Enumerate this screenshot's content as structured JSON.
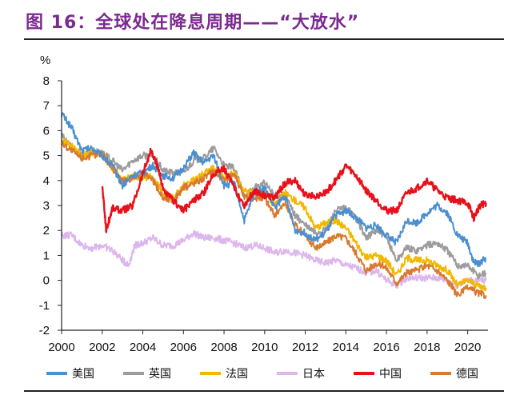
{
  "figure": {
    "title": "图 16：全球处在降息周期——“大放水”"
  },
  "colors": {
    "title": "#7b2a8f",
    "axis": "#222222"
  },
  "chart_data": {
    "type": "line",
    "ylabel": "%",
    "xlabel": "",
    "ylim": [
      -2,
      8
    ],
    "yticks": [
      -2,
      -1,
      0,
      1,
      2,
      3,
      4,
      5,
      6,
      7,
      8
    ],
    "xlim": [
      2000,
      2021
    ],
    "xticks": [
      "2000",
      "2002",
      "2004",
      "2006",
      "2008",
      "2010",
      "2012",
      "2014",
      "2016",
      "2018",
      "2020"
    ],
    "grid": false,
    "legend_position": "bottom",
    "series": [
      {
        "name": "美国",
        "color": "#4a8fd0",
        "x": [
          2000.0,
          2000.5,
          2001.0,
          2001.5,
          2002.0,
          2002.5,
          2003.0,
          2003.5,
          2004.0,
          2004.5,
          2005.0,
          2005.5,
          2006.0,
          2006.5,
          2007.0,
          2007.5,
          2008.0,
          2008.5,
          2009.0,
          2009.5,
          2010.0,
          2010.5,
          2011.0,
          2011.5,
          2012.0,
          2012.5,
          2013.0,
          2013.5,
          2014.0,
          2014.5,
          2015.0,
          2015.5,
          2016.0,
          2016.5,
          2017.0,
          2017.5,
          2018.0,
          2018.5,
          2019.0,
          2019.5,
          2020.0,
          2020.3,
          2020.6,
          2020.9
        ],
        "values": [
          6.7,
          6.1,
          5.2,
          5.3,
          5.0,
          4.6,
          3.8,
          4.2,
          4.3,
          4.6,
          4.2,
          4.1,
          4.5,
          5.1,
          4.7,
          5.0,
          3.8,
          3.9,
          2.4,
          3.5,
          3.7,
          2.9,
          3.4,
          2.0,
          1.9,
          1.6,
          1.9,
          2.6,
          2.8,
          2.5,
          2.1,
          2.2,
          1.8,
          1.5,
          2.4,
          2.3,
          2.7,
          3.0,
          2.7,
          1.8,
          1.5,
          0.7,
          0.7,
          0.9
        ]
      },
      {
        "name": "英国",
        "color": "#9c9c9c",
        "x": [
          2000.0,
          2000.5,
          2001.0,
          2001.5,
          2002.0,
          2002.5,
          2003.0,
          2003.5,
          2004.0,
          2004.5,
          2005.0,
          2005.5,
          2006.0,
          2006.5,
          2007.0,
          2007.5,
          2008.0,
          2008.5,
          2009.0,
          2009.5,
          2010.0,
          2010.5,
          2011.0,
          2011.5,
          2012.0,
          2012.5,
          2013.0,
          2013.5,
          2014.0,
          2014.5,
          2015.0,
          2015.5,
          2016.0,
          2016.5,
          2017.0,
          2017.5,
          2018.0,
          2018.5,
          2019.0,
          2019.5,
          2020.0,
          2020.5,
          2020.9
        ],
        "values": [
          5.8,
          5.3,
          5.0,
          5.2,
          5.1,
          4.8,
          4.4,
          4.8,
          5.0,
          5.0,
          4.4,
          4.3,
          4.3,
          4.8,
          4.9,
          5.3,
          4.6,
          4.5,
          3.4,
          3.7,
          3.9,
          3.4,
          3.4,
          2.6,
          2.2,
          1.9,
          2.0,
          2.8,
          2.9,
          2.5,
          1.7,
          2.0,
          1.7,
          0.8,
          1.3,
          1.2,
          1.4,
          1.5,
          1.2,
          0.6,
          0.6,
          0.2,
          0.3
        ]
      },
      {
        "name": "法国",
        "color": "#f2b800",
        "x": [
          2000.0,
          2000.5,
          2001.0,
          2001.5,
          2002.0,
          2002.5,
          2003.0,
          2003.5,
          2004.0,
          2004.5,
          2005.0,
          2005.5,
          2006.0,
          2006.5,
          2007.0,
          2007.5,
          2008.0,
          2008.5,
          2009.0,
          2009.5,
          2010.0,
          2010.5,
          2011.0,
          2011.5,
          2012.0,
          2012.5,
          2013.0,
          2013.5,
          2014.0,
          2014.5,
          2015.0,
          2015.5,
          2016.0,
          2016.5,
          2017.0,
          2017.5,
          2018.0,
          2018.5,
          2019.0,
          2019.5,
          2020.0,
          2020.5,
          2020.9
        ],
        "values": [
          5.6,
          5.4,
          5.0,
          5.1,
          5.0,
          4.5,
          4.0,
          4.2,
          4.1,
          4.2,
          3.4,
          3.3,
          3.8,
          4.0,
          4.3,
          4.5,
          4.1,
          4.3,
          3.6,
          3.5,
          3.5,
          3.0,
          3.5,
          3.2,
          2.9,
          2.1,
          2.3,
          2.4,
          2.1,
          1.5,
          0.9,
          1.0,
          0.8,
          0.2,
          0.9,
          0.8,
          0.8,
          0.6,
          0.4,
          -0.2,
          0.0,
          -0.2,
          -0.3
        ]
      },
      {
        "name": "日本",
        "color": "#dcb7ec",
        "x": [
          2000.0,
          2000.5,
          2001.0,
          2001.5,
          2002.0,
          2002.5,
          2003.0,
          2003.3,
          2003.6,
          2004.0,
          2004.5,
          2005.0,
          2005.5,
          2006.0,
          2006.5,
          2007.0,
          2007.5,
          2008.0,
          2008.5,
          2009.0,
          2009.5,
          2010.0,
          2010.5,
          2011.0,
          2011.5,
          2012.0,
          2012.5,
          2013.0,
          2013.5,
          2014.0,
          2014.5,
          2015.0,
          2015.5,
          2016.0,
          2016.5,
          2017.0,
          2017.5,
          2018.0,
          2018.5,
          2019.0,
          2019.5,
          2020.0,
          2020.5,
          2020.9
        ],
        "values": [
          1.8,
          1.8,
          1.4,
          1.3,
          1.4,
          1.2,
          0.8,
          0.6,
          1.4,
          1.5,
          1.7,
          1.4,
          1.4,
          1.6,
          1.9,
          1.7,
          1.7,
          1.6,
          1.5,
          1.3,
          1.4,
          1.3,
          1.1,
          1.2,
          1.1,
          1.0,
          0.8,
          0.7,
          0.8,
          0.6,
          0.5,
          0.3,
          0.4,
          0.0,
          -0.2,
          0.1,
          0.1,
          0.1,
          0.1,
          0.0,
          -0.2,
          0.0,
          0.0,
          0.0
        ]
      },
      {
        "name": "中国",
        "color": "#e8101a",
        "x": [
          2002.0,
          2002.2,
          2002.5,
          2003.0,
          2003.5,
          2004.0,
          2004.4,
          2004.8,
          2005.0,
          2005.5,
          2006.0,
          2006.5,
          2007.0,
          2007.5,
          2008.0,
          2008.5,
          2009.0,
          2009.5,
          2010.0,
          2010.5,
          2011.0,
          2011.5,
          2012.0,
          2012.5,
          2013.0,
          2013.5,
          2014.0,
          2014.5,
          2015.0,
          2015.5,
          2016.0,
          2016.5,
          2017.0,
          2017.5,
          2018.0,
          2018.5,
          2019.0,
          2019.5,
          2020.0,
          2020.3,
          2020.6,
          2020.9
        ],
        "values": [
          3.8,
          2.0,
          2.9,
          2.8,
          3.0,
          4.3,
          5.2,
          4.4,
          3.6,
          3.2,
          2.8,
          3.2,
          3.5,
          4.3,
          4.5,
          3.7,
          3.0,
          3.6,
          3.4,
          3.3,
          3.9,
          4.0,
          3.4,
          3.4,
          3.5,
          4.0,
          4.6,
          4.2,
          3.6,
          3.2,
          2.8,
          2.8,
          3.5,
          3.7,
          4.0,
          3.6,
          3.3,
          3.2,
          3.1,
          2.5,
          3.0,
          3.1
        ]
      },
      {
        "name": "德国",
        "color": "#d87a2e",
        "x": [
          2000.0,
          2000.5,
          2001.0,
          2001.5,
          2002.0,
          2002.5,
          2003.0,
          2003.5,
          2004.0,
          2004.5,
          2005.0,
          2005.5,
          2006.0,
          2006.5,
          2007.0,
          2007.5,
          2008.0,
          2008.5,
          2009.0,
          2009.5,
          2010.0,
          2010.5,
          2011.0,
          2011.5,
          2012.0,
          2012.5,
          2013.0,
          2013.5,
          2014.0,
          2014.5,
          2015.0,
          2015.5,
          2016.0,
          2016.5,
          2017.0,
          2017.5,
          2018.0,
          2018.5,
          2019.0,
          2019.5,
          2020.0,
          2020.5,
          2020.9
        ],
        "values": [
          5.5,
          5.2,
          4.9,
          5.0,
          5.1,
          4.5,
          4.0,
          4.1,
          4.3,
          4.0,
          3.3,
          3.2,
          3.7,
          3.9,
          4.1,
          4.4,
          4.0,
          4.3,
          3.3,
          3.3,
          3.3,
          2.6,
          3.1,
          2.2,
          1.8,
          1.3,
          1.5,
          1.8,
          1.7,
          1.1,
          0.4,
          0.7,
          0.5,
          -0.1,
          0.3,
          0.4,
          0.6,
          0.4,
          0.0,
          -0.6,
          -0.3,
          -0.5,
          -0.6
        ]
      }
    ]
  }
}
